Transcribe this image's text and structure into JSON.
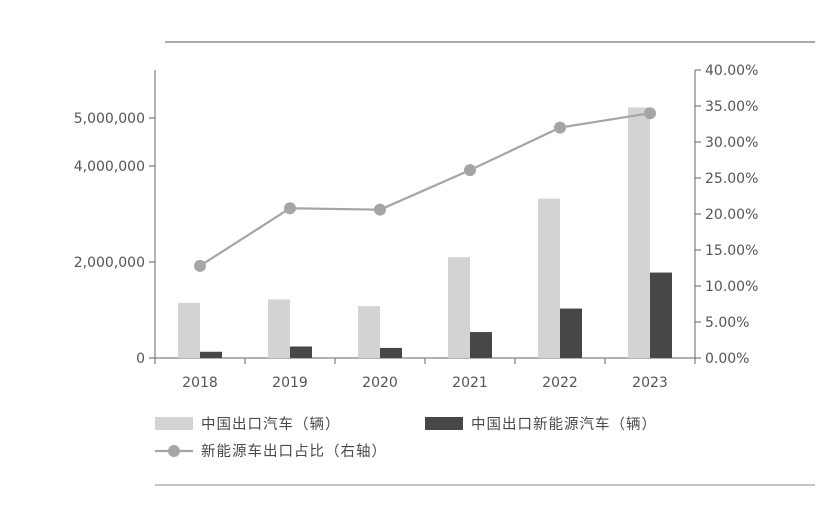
{
  "chart_data": {
    "type": "bar",
    "categories": [
      "2018",
      "2019",
      "2020",
      "2021",
      "2022",
      "2023"
    ],
    "series": [
      {
        "name": "中国出口汽车（辆）",
        "kind": "bar",
        "axis": "left",
        "color": "#d3d3d3",
        "values": [
          1150000,
          1220000,
          1080000,
          2100000,
          3320000,
          5220000
        ]
      },
      {
        "name": "中国出口新能源汽车（辆）",
        "kind": "bar",
        "axis": "left",
        "color": "#474747",
        "values": [
          130000,
          240000,
          210000,
          540000,
          1030000,
          1780000
        ]
      },
      {
        "name": "新能源车出口占比（右轴）",
        "kind": "line",
        "axis": "right",
        "color": "#a5a5a5",
        "values": [
          0.128,
          0.208,
          0.206,
          0.261,
          0.32,
          0.34
        ]
      }
    ],
    "y_left": {
      "range": [
        0,
        6000000
      ],
      "ticks": [
        0,
        2000000,
        4000000,
        5000000
      ],
      "tick_labels": [
        "0",
        "2,000,000",
        "4,000,000",
        "5,000,000"
      ]
    },
    "y_right": {
      "range": [
        0,
        0.4
      ],
      "ticks": [
        0,
        0.05,
        0.1,
        0.15,
        0.2,
        0.25,
        0.3,
        0.35,
        0.4
      ],
      "tick_labels": [
        "0.00%",
        "5.00%",
        "10.00%",
        "15.00%",
        "20.00%",
        "25.00%",
        "30.00%",
        "35.00%",
        "40.00%"
      ]
    },
    "grid": false,
    "legend_position": "bottom-left",
    "title": "",
    "xlabel": "",
    "ylabel": ""
  }
}
